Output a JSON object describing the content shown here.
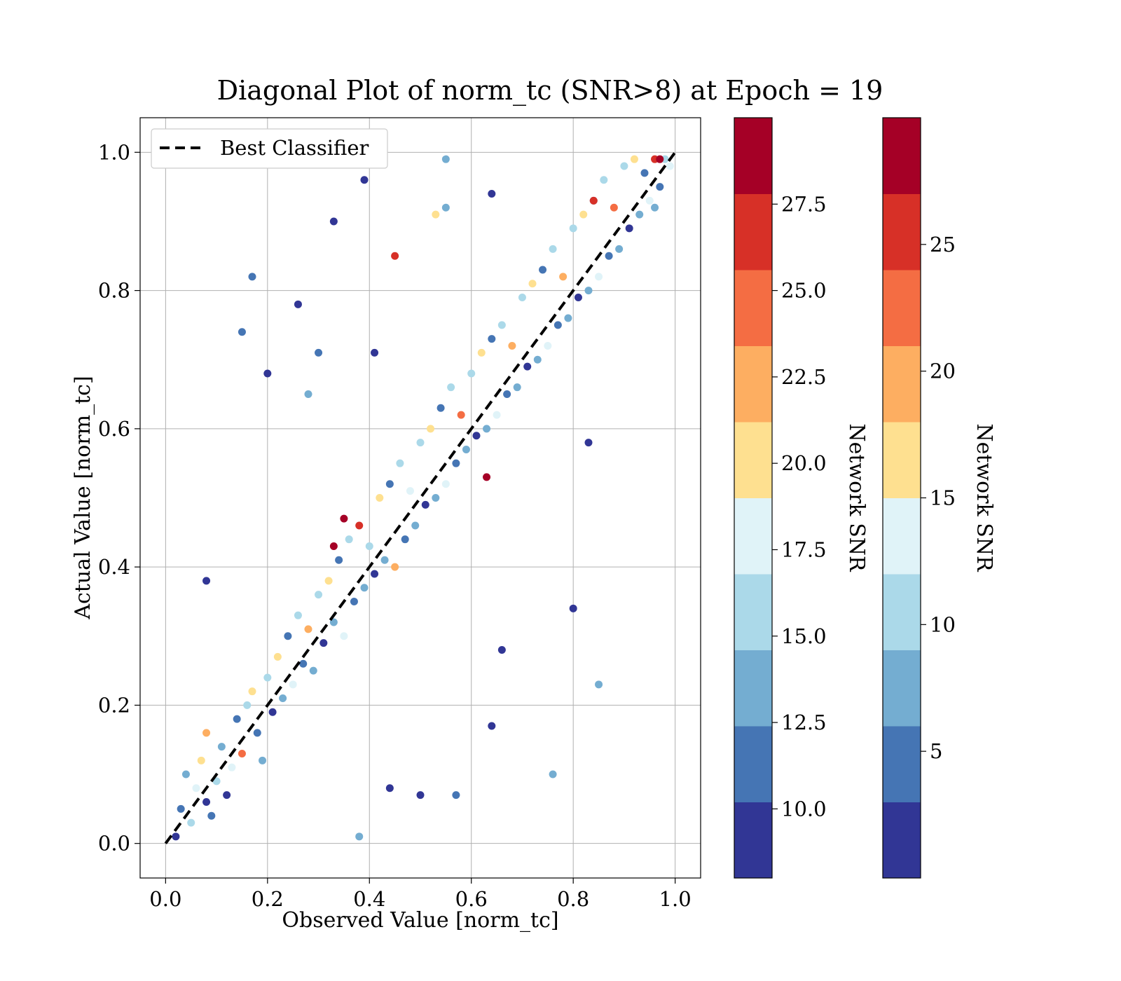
{
  "chart_data": {
    "type": "scatter",
    "title": "Diagonal Plot of norm_tc (SNR>8) at Epoch = 19",
    "xlabel": "Observed Value [norm_tc]",
    "ylabel": "Actual Value [norm_tc]",
    "xlim": [
      -0.05,
      1.05
    ],
    "ylim": [
      -0.05,
      1.05
    ],
    "xticks": [
      "0.0",
      "0.2",
      "0.4",
      "0.6",
      "0.8",
      "1.0"
    ],
    "yticks": [
      "0.0",
      "0.2",
      "0.4",
      "0.6",
      "0.8",
      "1.0"
    ],
    "grid": true,
    "legend": {
      "placement": "upper left",
      "entries": [
        {
          "label": "Best Classifier",
          "style": "dashed",
          "color": "#000000"
        }
      ]
    },
    "reference_line": {
      "name": "Best Classifier",
      "x": [
        0,
        1
      ],
      "y": [
        0,
        1
      ]
    },
    "series_note_color_by": "Network SNR",
    "points": [
      [
        0.02,
        0.01,
        9
      ],
      [
        0.03,
        0.05,
        12
      ],
      [
        0.05,
        0.03,
        15
      ],
      [
        0.06,
        0.08,
        18
      ],
      [
        0.08,
        0.06,
        10
      ],
      [
        0.04,
        0.1,
        14
      ],
      [
        0.07,
        0.12,
        20
      ],
      [
        0.09,
        0.04,
        11
      ],
      [
        0.1,
        0.09,
        16
      ],
      [
        0.11,
        0.14,
        13
      ],
      [
        0.08,
        0.16,
        22
      ],
      [
        0.12,
        0.07,
        10
      ],
      [
        0.13,
        0.11,
        17
      ],
      [
        0.14,
        0.18,
        12
      ],
      [
        0.15,
        0.13,
        24
      ],
      [
        0.16,
        0.2,
        15
      ],
      [
        0.18,
        0.16,
        11
      ],
      [
        0.17,
        0.22,
        19
      ],
      [
        0.19,
        0.12,
        13
      ],
      [
        0.2,
        0.24,
        16
      ],
      [
        0.21,
        0.19,
        10
      ],
      [
        0.22,
        0.27,
        21
      ],
      [
        0.23,
        0.21,
        14
      ],
      [
        0.24,
        0.3,
        12
      ],
      [
        0.25,
        0.23,
        18
      ],
      [
        0.26,
        0.33,
        15
      ],
      [
        0.27,
        0.26,
        11
      ],
      [
        0.28,
        0.31,
        23
      ],
      [
        0.29,
        0.25,
        13
      ],
      [
        0.3,
        0.36,
        16
      ],
      [
        0.31,
        0.29,
        10
      ],
      [
        0.32,
        0.38,
        20
      ],
      [
        0.33,
        0.32,
        14
      ],
      [
        0.34,
        0.41,
        12
      ],
      [
        0.35,
        0.3,
        17
      ],
      [
        0.36,
        0.44,
        15
      ],
      [
        0.37,
        0.35,
        11
      ],
      [
        0.38,
        0.46,
        26
      ],
      [
        0.39,
        0.37,
        13
      ],
      [
        0.4,
        0.43,
        16
      ],
      [
        0.41,
        0.39,
        10
      ],
      [
        0.42,
        0.5,
        19
      ],
      [
        0.43,
        0.41,
        14
      ],
      [
        0.44,
        0.52,
        12
      ],
      [
        0.45,
        0.4,
        22
      ],
      [
        0.46,
        0.55,
        15
      ],
      [
        0.47,
        0.44,
        11
      ],
      [
        0.48,
        0.51,
        18
      ],
      [
        0.49,
        0.46,
        13
      ],
      [
        0.5,
        0.58,
        16
      ],
      [
        0.51,
        0.49,
        10
      ],
      [
        0.52,
        0.6,
        21
      ],
      [
        0.53,
        0.5,
        14
      ],
      [
        0.54,
        0.63,
        12
      ],
      [
        0.55,
        0.52,
        17
      ],
      [
        0.56,
        0.66,
        15
      ],
      [
        0.57,
        0.55,
        11
      ],
      [
        0.58,
        0.62,
        24
      ],
      [
        0.59,
        0.57,
        13
      ],
      [
        0.6,
        0.68,
        16
      ],
      [
        0.61,
        0.59,
        10
      ],
      [
        0.62,
        0.71,
        20
      ],
      [
        0.63,
        0.6,
        14
      ],
      [
        0.64,
        0.73,
        12
      ],
      [
        0.65,
        0.62,
        18
      ],
      [
        0.66,
        0.75,
        15
      ],
      [
        0.67,
        0.65,
        11
      ],
      [
        0.68,
        0.72,
        23
      ],
      [
        0.69,
        0.66,
        13
      ],
      [
        0.7,
        0.79,
        16
      ],
      [
        0.71,
        0.69,
        10
      ],
      [
        0.72,
        0.81,
        19
      ],
      [
        0.73,
        0.7,
        14
      ],
      [
        0.74,
        0.83,
        12
      ],
      [
        0.75,
        0.72,
        17
      ],
      [
        0.76,
        0.86,
        15
      ],
      [
        0.77,
        0.75,
        11
      ],
      [
        0.78,
        0.82,
        22
      ],
      [
        0.79,
        0.76,
        13
      ],
      [
        0.8,
        0.89,
        16
      ],
      [
        0.81,
        0.79,
        10
      ],
      [
        0.82,
        0.91,
        21
      ],
      [
        0.83,
        0.8,
        14
      ],
      [
        0.84,
        0.93,
        12
      ],
      [
        0.85,
        0.82,
        18
      ],
      [
        0.86,
        0.96,
        15
      ],
      [
        0.87,
        0.85,
        11
      ],
      [
        0.88,
        0.92,
        24
      ],
      [
        0.89,
        0.86,
        13
      ],
      [
        0.9,
        0.98,
        16
      ],
      [
        0.91,
        0.89,
        10
      ],
      [
        0.92,
        0.99,
        20
      ],
      [
        0.93,
        0.91,
        14
      ],
      [
        0.94,
        0.97,
        12
      ],
      [
        0.95,
        0.93,
        17
      ],
      [
        0.96,
        0.99,
        27
      ],
      [
        0.97,
        0.95,
        11
      ],
      [
        0.98,
        0.99,
        15
      ],
      [
        0.96,
        0.92,
        13
      ],
      [
        0.99,
        0.98,
        18
      ],
      [
        0.35,
        0.47,
        28
      ],
      [
        0.33,
        0.43,
        28
      ],
      [
        0.63,
        0.53,
        28
      ],
      [
        0.97,
        0.99,
        28
      ],
      [
        0.84,
        0.93,
        27
      ],
      [
        0.45,
        0.85,
        26
      ],
      [
        0.26,
        0.78,
        10
      ],
      [
        0.17,
        0.82,
        11
      ],
      [
        0.33,
        0.9,
        10
      ],
      [
        0.39,
        0.96,
        10
      ],
      [
        0.2,
        0.68,
        10
      ],
      [
        0.15,
        0.74,
        12
      ],
      [
        0.3,
        0.71,
        12
      ],
      [
        0.08,
        0.38,
        10
      ],
      [
        0.83,
        0.58,
        10
      ],
      [
        0.8,
        0.34,
        10
      ],
      [
        0.85,
        0.23,
        13
      ],
      [
        0.76,
        0.1,
        14
      ],
      [
        0.64,
        0.17,
        10
      ],
      [
        0.57,
        0.07,
        11
      ],
      [
        0.55,
        0.99,
        14
      ],
      [
        0.53,
        0.91,
        20
      ],
      [
        0.55,
        0.92,
        14
      ],
      [
        0.64,
        0.94,
        10
      ],
      [
        0.41,
        0.71,
        10
      ],
      [
        0.5,
        0.07,
        10
      ],
      [
        0.38,
        0.01,
        13
      ],
      [
        0.44,
        0.08,
        10
      ],
      [
        0.28,
        0.65,
        14
      ],
      [
        0.66,
        0.28,
        10
      ]
    ],
    "colorbars": [
      {
        "label": "Network SNR",
        "range": [
          8,
          30
        ],
        "boundaries": [
          8,
          10.2,
          12.4,
          14.6,
          16.8,
          19.0,
          21.2,
          23.4,
          25.6,
          27.8,
          30
        ],
        "ticks": [
          "10.0",
          "12.5",
          "15.0",
          "17.5",
          "20.0",
          "22.5",
          "25.0",
          "27.5"
        ],
        "tick_values": [
          10.0,
          12.5,
          15.0,
          17.5,
          20.0,
          22.5,
          25.0,
          27.5
        ]
      },
      {
        "label": "Network SNR",
        "range": [
          0,
          30
        ],
        "boundaries": [
          0,
          3,
          6,
          9,
          12,
          15,
          18,
          21,
          24,
          27,
          30
        ],
        "ticks": [
          "5",
          "10",
          "15",
          "20",
          "25"
        ],
        "tick_values": [
          5,
          10,
          15,
          20,
          25
        ]
      }
    ],
    "colormap": [
      "#313695",
      "#4575b4",
      "#74add1",
      "#abd9e9",
      "#e0f3f8",
      "#fee090",
      "#fdae61",
      "#f46d43",
      "#d73027",
      "#a50026"
    ]
  }
}
